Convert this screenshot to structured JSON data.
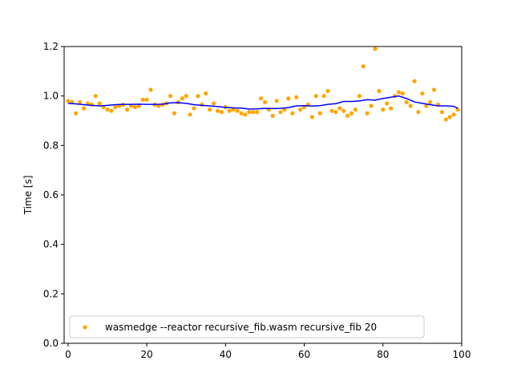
{
  "chart_data": {
    "type": "scatter",
    "xlabel": "",
    "ylabel": "Time [s]",
    "xlim": [
      -1,
      100
    ],
    "ylim": [
      0,
      1.2
    ],
    "xticks": [
      0,
      20,
      40,
      60,
      80,
      100
    ],
    "yticks": [
      0.0,
      0.2,
      0.4,
      0.6,
      0.8,
      1.0,
      1.2
    ],
    "legend_position": "lower-left",
    "grid": false,
    "colors": {
      "points": "#ffa500",
      "trend": "#0000ff"
    },
    "series": [
      {
        "name": "wasmedge --reactor recursive_fib.wasm recursive_fib 20",
        "kind": "scatter",
        "x": [
          0,
          1,
          2,
          3,
          4,
          5,
          6,
          7,
          8,
          9,
          10,
          11,
          12,
          13,
          14,
          15,
          16,
          17,
          18,
          19,
          20,
          21,
          22,
          23,
          24,
          25,
          26,
          27,
          28,
          29,
          30,
          31,
          32,
          33,
          34,
          35,
          36,
          37,
          38,
          39,
          40,
          41,
          42,
          43,
          44,
          45,
          46,
          47,
          48,
          49,
          50,
          51,
          52,
          53,
          54,
          55,
          56,
          57,
          58,
          59,
          60,
          61,
          62,
          63,
          64,
          65,
          66,
          67,
          68,
          69,
          70,
          71,
          72,
          73,
          74,
          75,
          76,
          77,
          78,
          79,
          80,
          81,
          82,
          83,
          84,
          85,
          86,
          87,
          88,
          89,
          90,
          91,
          92,
          93,
          94,
          95,
          96,
          97,
          98,
          99
        ],
        "y": [
          0.98,
          0.975,
          0.93,
          0.975,
          0.95,
          0.97,
          0.965,
          1.0,
          0.97,
          0.955,
          0.945,
          0.94,
          0.955,
          0.96,
          0.965,
          0.945,
          0.96,
          0.955,
          0.96,
          0.985,
          0.985,
          1.025,
          0.965,
          0.96,
          0.965,
          0.97,
          1.0,
          0.93,
          0.975,
          0.99,
          1.0,
          0.925,
          0.95,
          1.0,
          0.965,
          1.01,
          0.945,
          0.97,
          0.94,
          0.935,
          0.955,
          0.94,
          0.945,
          0.94,
          0.93,
          0.925,
          0.935,
          0.935,
          0.935,
          0.99,
          0.975,
          0.945,
          0.92,
          0.98,
          0.935,
          0.945,
          0.99,
          0.93,
          0.995,
          0.945,
          0.955,
          0.965,
          0.915,
          1.0,
          0.93,
          1.0,
          1.02,
          0.94,
          0.935,
          0.95,
          0.94,
          0.92,
          0.93,
          0.945,
          1.0,
          1.12,
          0.93,
          0.96,
          1.19,
          1.02,
          0.945,
          0.97,
          0.95,
          1.0,
          1.015,
          1.01,
          0.975,
          0.96,
          1.06,
          0.935,
          1.01,
          0.96,
          0.975,
          1.025,
          0.965,
          0.935,
          0.905,
          0.915,
          0.925,
          0.945
        ]
      },
      {
        "kind": "line",
        "x": [
          0,
          2,
          4,
          6,
          8,
          10,
          12,
          14,
          16,
          18,
          20,
          22,
          24,
          26,
          28,
          30,
          32,
          34,
          36,
          38,
          40,
          42,
          44,
          46,
          48,
          50,
          52,
          54,
          56,
          58,
          60,
          62,
          64,
          66,
          68,
          70,
          72,
          74,
          76,
          78,
          80,
          82,
          84,
          86,
          88,
          90,
          92,
          94,
          96,
          98,
          99
        ],
        "y": [
          0.97,
          0.968,
          0.965,
          0.962,
          0.96,
          0.962,
          0.965,
          0.966,
          0.966,
          0.967,
          0.966,
          0.966,
          0.967,
          0.972,
          0.973,
          0.97,
          0.965,
          0.962,
          0.96,
          0.957,
          0.954,
          0.952,
          0.951,
          0.947,
          0.948,
          0.95,
          0.949,
          0.95,
          0.953,
          0.96,
          0.961,
          0.959,
          0.961,
          0.966,
          0.969,
          0.978,
          0.978,
          0.98,
          0.985,
          0.983,
          0.99,
          0.995,
          1.0,
          0.99,
          0.976,
          0.97,
          0.965,
          0.96,
          0.96,
          0.958,
          0.95
        ]
      }
    ]
  }
}
